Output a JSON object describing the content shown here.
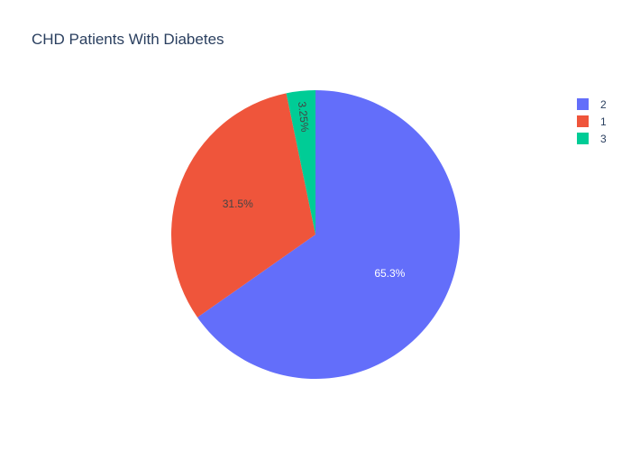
{
  "chart_data": {
    "type": "pie",
    "title": "CHD Patients With Diabetes",
    "slices": [
      {
        "label": "2",
        "percent": 65.3,
        "percent_text": "65.3%",
        "color": "#636efa",
        "text_color": "#ffffff"
      },
      {
        "label": "1",
        "percent": 31.5,
        "percent_text": "31.5%",
        "color": "#ef553b",
        "text_color": "#444444"
      },
      {
        "label": "3",
        "percent": 3.25,
        "percent_text": "3.25%",
        "color": "#00cc96",
        "text_color": "#444444"
      }
    ],
    "legend_position": "top-right",
    "sort": "descending",
    "direction": "clockwise",
    "start_angle": "top"
  }
}
